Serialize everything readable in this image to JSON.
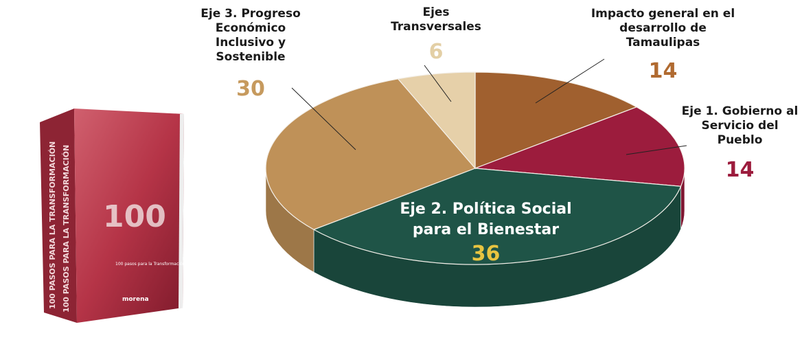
{
  "chart_data": {
    "type": "pie",
    "categories": [
      "Impacto general en el desarrollo de Tamaulipas",
      "Eje 1. Gobierno al Servicio del Pueblo",
      "Eje 2. Política Social para el Bienestar",
      "Eje 3. Progreso Económico Inclusivo y Sostenible",
      "Ejes Transversales"
    ],
    "values": [
      14,
      14,
      36,
      30,
      6
    ],
    "colors": [
      "#a0602f",
      "#9c1c3d",
      "#1f5447",
      "#bf9158",
      "#e6d0a9"
    ],
    "value_label_colors": [
      "#b06a30",
      "#9c1c3d",
      "#e8c440",
      "#c69a5e",
      "#e3cfa5"
    ]
  },
  "book": {
    "spine": "100 PASOS PARA LA TRANSFORMACIÓN",
    "numeral": "100",
    "cover_title": "100 pasos para la Transformación",
    "brand": "morena"
  }
}
